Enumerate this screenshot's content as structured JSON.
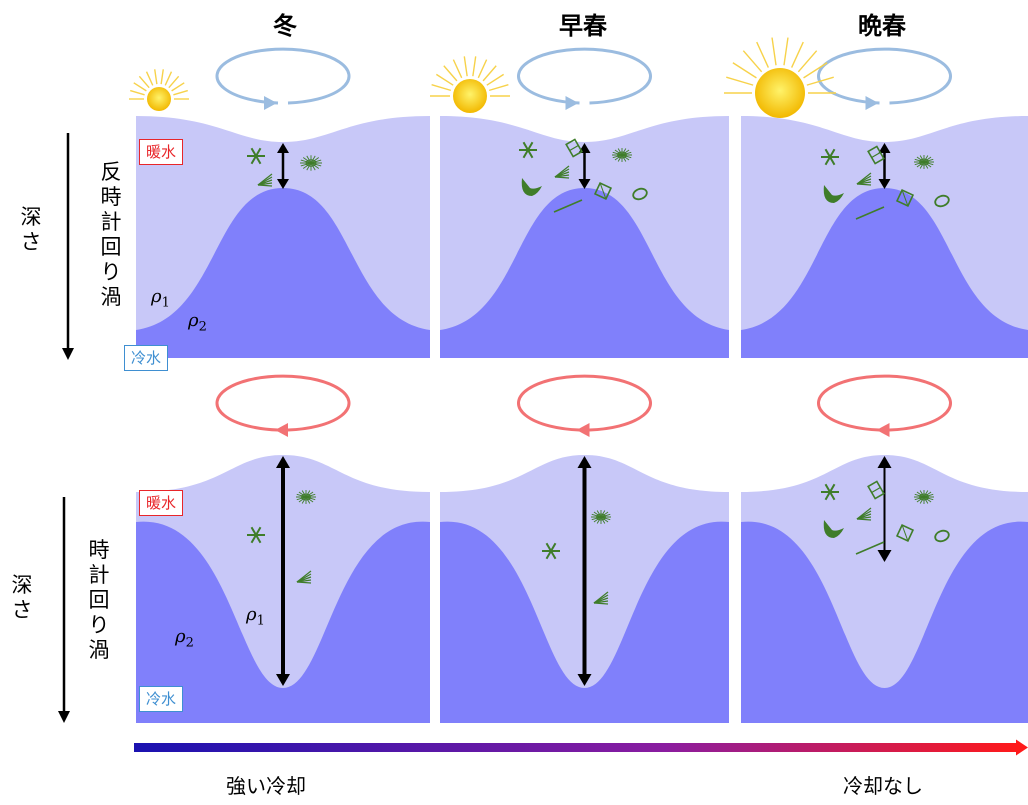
{
  "seasons": [
    "冬",
    "早春",
    "晩春"
  ],
  "rows": [
    {
      "depth_label": "深さ",
      "eddy_label": "反時計回り渦",
      "warm_label": "暖水",
      "cold_label": "冷水"
    },
    {
      "depth_label": "深さ",
      "eddy_label": "時計回り渦",
      "warm_label": "暖水",
      "cold_label": "冷水"
    }
  ],
  "density_labels": {
    "rho1_symbol": "ρ",
    "rho1_sub": "1",
    "rho2_symbol": "ρ",
    "rho2_sub": "2"
  },
  "cooling_scale": {
    "left_label": "強い冷却",
    "right_label": "冷却なし"
  },
  "colors": {
    "upper_layer": "#c8c8f8",
    "lower_layer": "#8080fb",
    "anticyclone_arrow": "#9bbce0",
    "cyclone_arrow": "#f27274",
    "plankton": "#3f7d2a",
    "sun": "#f7c600",
    "warm_text": "#e8262a",
    "cold_text": "#3f8fd1",
    "gradient_start": "#1a12b0",
    "gradient_end": "#ff1a1a"
  }
}
